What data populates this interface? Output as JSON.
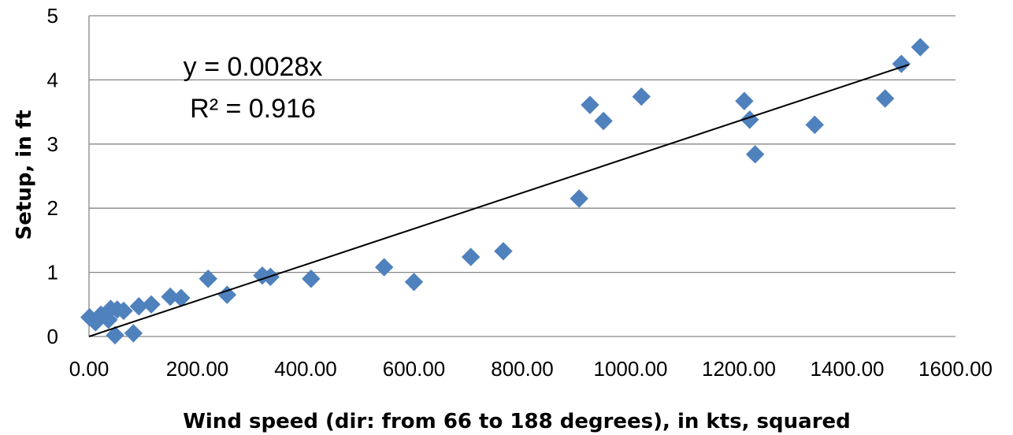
{
  "chart_data": {
    "type": "scatter",
    "title": "",
    "xlabel": "Wind speed (dir: from 66 to 188 degrees), in kts, squared",
    "ylabel": "Setup, in ft",
    "xlim": [
      0,
      1600
    ],
    "ylim": [
      0,
      5
    ],
    "x_ticks": [
      "0.00",
      "200.00",
      "400.00",
      "600.00",
      "800.00",
      "1000.00",
      "1200.00",
      "1400.00",
      "1600.00"
    ],
    "y_ticks": [
      "0",
      "1",
      "2",
      "3",
      "4",
      "5"
    ],
    "grid": "horizontal",
    "marker": "diamond",
    "marker_color": "#4F81BD",
    "trendline": {
      "slope": 0.0028,
      "intercept": 0,
      "x_range": [
        0,
        1514
      ],
      "color": "#000000"
    },
    "annotations": [
      "y = 0.0028x",
      "R² = 0.916"
    ],
    "points": [
      [
        1,
        0.3
      ],
      [
        12,
        0.22
      ],
      [
        22,
        0.34
      ],
      [
        36,
        0.26
      ],
      [
        40,
        0.43
      ],
      [
        48,
        0.02
      ],
      [
        52,
        0.42
      ],
      [
        64,
        0.4
      ],
      [
        82,
        0.05
      ],
      [
        92,
        0.47
      ],
      [
        115,
        0.5
      ],
      [
        150,
        0.62
      ],
      [
        170,
        0.6
      ],
      [
        220,
        0.9
      ],
      [
        255,
        0.65
      ],
      [
        320,
        0.95
      ],
      [
        335,
        0.93
      ],
      [
        410,
        0.9
      ],
      [
        545,
        1.08
      ],
      [
        600,
        0.85
      ],
      [
        705,
        1.24
      ],
      [
        765,
        1.33
      ],
      [
        905,
        2.15
      ],
      [
        925,
        3.61
      ],
      [
        950,
        3.36
      ],
      [
        1020,
        3.74
      ],
      [
        1210,
        3.67
      ],
      [
        1220,
        3.38
      ],
      [
        1230,
        2.84
      ],
      [
        1340,
        3.3
      ],
      [
        1470,
        3.71
      ],
      [
        1500,
        4.25
      ],
      [
        1535,
        4.51
      ]
    ]
  }
}
